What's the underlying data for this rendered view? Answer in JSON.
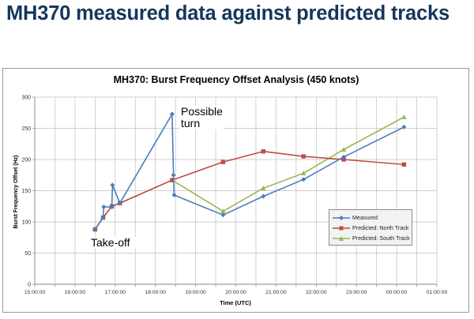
{
  "slide": {
    "title": "MH370 measured data against predicted tracks"
  },
  "annotations": {
    "possible_turn": "Possible turn",
    "take_off": "Take-off"
  },
  "colors": {
    "measured": "#4a7ebb",
    "north": "#be4b48",
    "south": "#98b954",
    "grid": "#bfbfbf",
    "axis": "#868686",
    "title_text": "#17365d"
  },
  "chart_data": {
    "type": "line",
    "title": "MH370: Burst Frequency Offset Analysis (450 knots)",
    "xlabel": "Time (UTC)",
    "ylabel": "Burst Frequency Offset (Hz)",
    "xlim": [
      "15:00:00",
      "01:00:00"
    ],
    "ylim": [
      0,
      300
    ],
    "x_ticks": [
      "15:00:00",
      "16:00:00",
      "17:00:00",
      "18:00:00",
      "19:00:00",
      "20:00:00",
      "21:00:00",
      "22:00:00",
      "23:00:00",
      "00:00:00",
      "01:00:00"
    ],
    "y_ticks": [
      0,
      50,
      100,
      150,
      200,
      250,
      300
    ],
    "grid": true,
    "legend_position": "bottom-right",
    "series": [
      {
        "name": "Measured",
        "marker": "diamond",
        "points": [
          {
            "x": "16:30:00",
            "y": 88
          },
          {
            "x": "16:42:00",
            "y": 107
          },
          {
            "x": "16:43:00",
            "y": 124
          },
          {
            "x": "16:55:00",
            "y": 124
          },
          {
            "x": "16:56:00",
            "y": 159
          },
          {
            "x": "17:07:00",
            "y": 130
          },
          {
            "x": "18:25:00",
            "y": 273
          },
          {
            "x": "18:27:00",
            "y": 175
          },
          {
            "x": "18:28:00",
            "y": 143
          },
          {
            "x": "19:41:00",
            "y": 111
          },
          {
            "x": "20:41:00",
            "y": 141
          },
          {
            "x": "21:41:00",
            "y": 168
          },
          {
            "x": "22:41:00",
            "y": 204
          },
          {
            "x": "00:11:00",
            "y": 252
          }
        ]
      },
      {
        "name": "Predicted: North Track",
        "marker": "square",
        "points": [
          {
            "x": "16:30:00",
            "y": 88
          },
          {
            "x": "16:42:00",
            "y": 107
          },
          {
            "x": "16:55:00",
            "y": 125
          },
          {
            "x": "17:07:00",
            "y": 130
          },
          {
            "x": "18:25:00",
            "y": 167
          },
          {
            "x": "19:41:00",
            "y": 196
          },
          {
            "x": "20:41:00",
            "y": 213
          },
          {
            "x": "21:41:00",
            "y": 205
          },
          {
            "x": "22:41:00",
            "y": 200
          },
          {
            "x": "00:11:00",
            "y": 192
          }
        ]
      },
      {
        "name": "Predicted: South Track",
        "marker": "triangle",
        "points": [
          {
            "x": "16:30:00",
            "y": 88
          },
          {
            "x": "16:42:00",
            "y": 107
          },
          {
            "x": "16:55:00",
            "y": 125
          },
          {
            "x": "17:07:00",
            "y": 130
          },
          {
            "x": "18:25:00",
            "y": 167
          },
          {
            "x": "19:41:00",
            "y": 117
          },
          {
            "x": "20:41:00",
            "y": 154
          },
          {
            "x": "21:41:00",
            "y": 178
          },
          {
            "x": "22:41:00",
            "y": 216
          },
          {
            "x": "00:11:00",
            "y": 268
          }
        ]
      }
    ]
  }
}
